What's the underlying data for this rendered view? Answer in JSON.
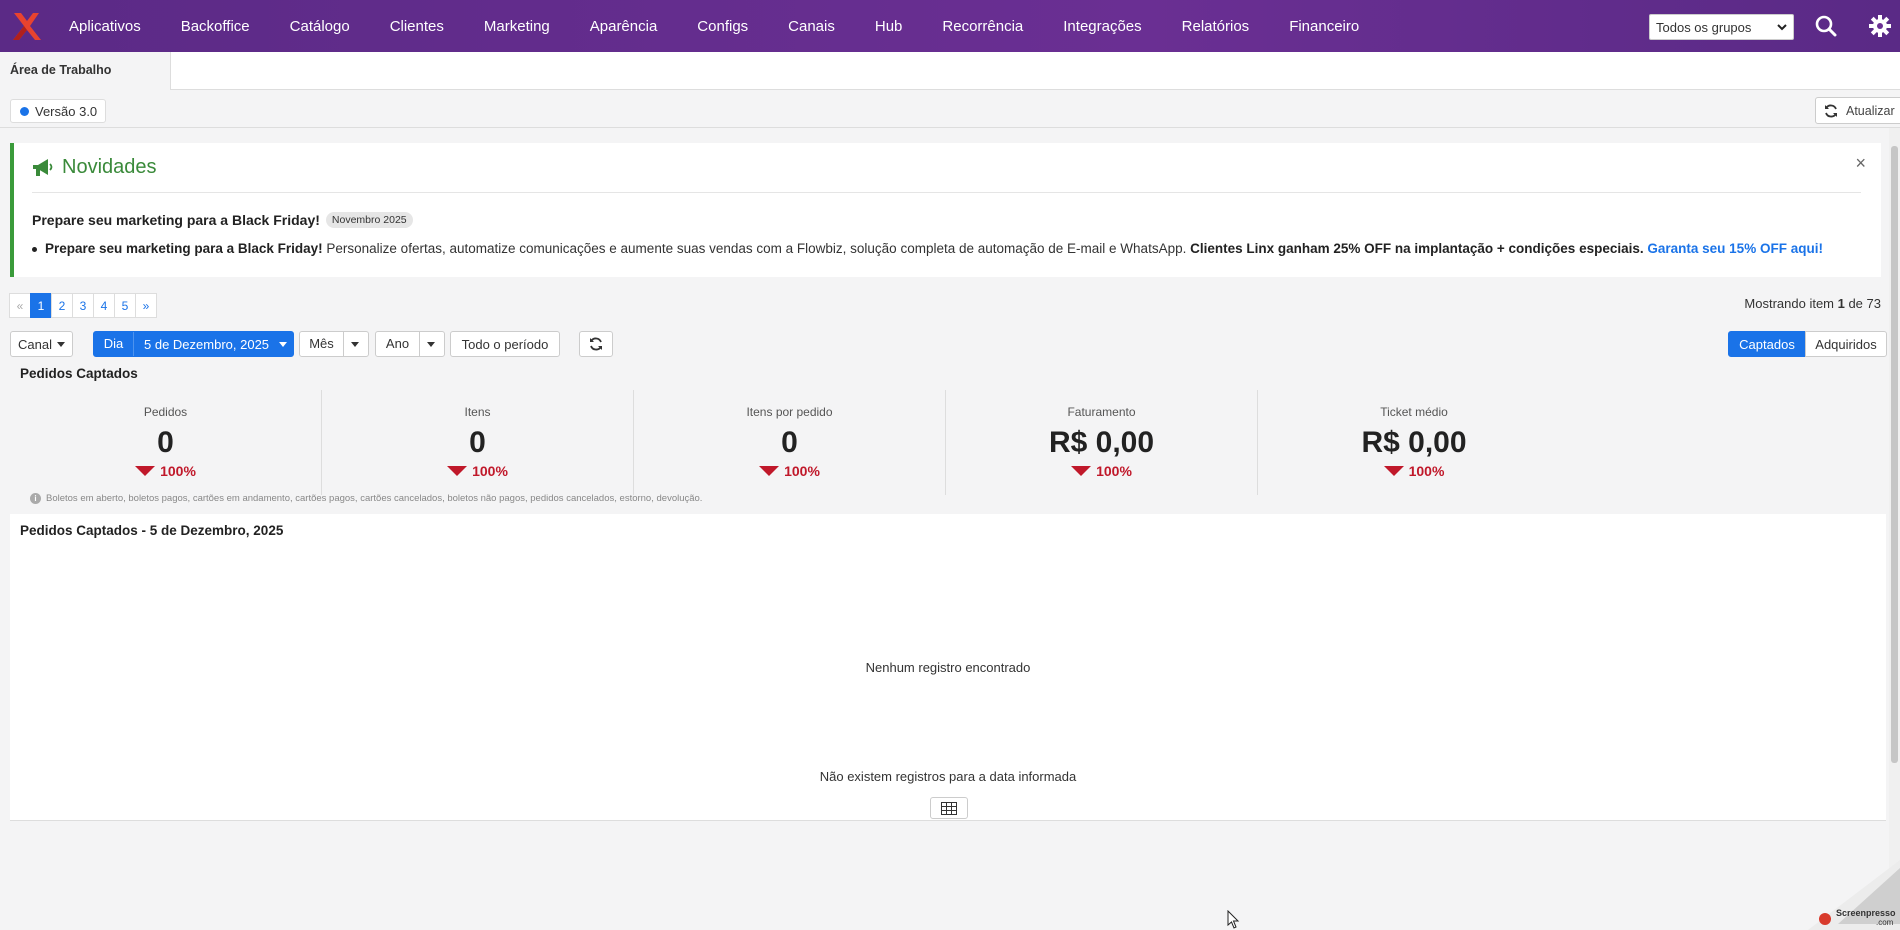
{
  "nav": {
    "items": [
      "Aplicativos",
      "Backoffice",
      "Catálogo",
      "Clientes",
      "Marketing",
      "Aparência",
      "Configs",
      "Canais",
      "Hub",
      "Recorrência",
      "Integrações",
      "Relatórios",
      "Financeiro"
    ],
    "group_select": "Todos os grupos",
    "colors": {
      "bar": "#5b2a86",
      "accent": "#1a73e8",
      "down": "#c0182a",
      "success": "#3a9b3a"
    }
  },
  "tabs": {
    "active": "Área de Trabalho"
  },
  "toolbar": {
    "version": "Versão 3.0",
    "refresh": "Atualizar"
  },
  "news": {
    "title": "Novidades",
    "close": "×",
    "subtitle": "Prepare seu marketing para a Black Friday!",
    "badge": "Novembro 2025",
    "item_bold": "Prepare seu marketing para a Black Friday!",
    "item_text": " Personalize ofertas, automatize comunicações e aumente suas vendas com a Flowbiz, solução completa de automação de E-mail e WhatsApp. ",
    "item_bold2": "Clientes Linx ganham 25% OFF na implantação + condições especiais.",
    "item_link": "Garanta seu 15% OFF aqui!"
  },
  "pager": {
    "prev": "«",
    "pages": [
      "1",
      "2",
      "3",
      "4",
      "5"
    ],
    "next": "»",
    "showing_prefix": "Mostrando item ",
    "showing_current": "1",
    "showing_suffix": " de 73"
  },
  "filters": {
    "canal": "Canal",
    "dia": "Dia",
    "date": "5 de Dezembro, 2025",
    "mes": "Mês",
    "ano": "Ano",
    "todo": "Todo o período",
    "captados": "Captados",
    "adquiridos": "Adquiridos"
  },
  "stats": {
    "title": "Pedidos Captados",
    "items": [
      {
        "label": "Pedidos",
        "value": "0",
        "delta": "100%"
      },
      {
        "label": "Itens",
        "value": "0",
        "delta": "100%"
      },
      {
        "label": "Itens por pedido",
        "value": "0",
        "delta": "100%"
      },
      {
        "label": "Faturamento",
        "value": "R$ 0,00",
        "delta": "100%"
      },
      {
        "label": "Ticket médio",
        "value": "R$ 0,00",
        "delta": "100%"
      }
    ],
    "note": "Boletos em aberto, boletos pagos, cartões em andamento, cartões pagos, cartões cancelados, boletos não pagos, pedidos cancelados, estorno, devolução."
  },
  "table": {
    "title": "Pedidos Captados - 5 de Dezembro, 2025",
    "empty": "Nenhum registro encontrado",
    "no_records": "Não existem registros para a data informada"
  },
  "watermark": {
    "line1": "Screenpresso",
    "line2": ".com"
  }
}
